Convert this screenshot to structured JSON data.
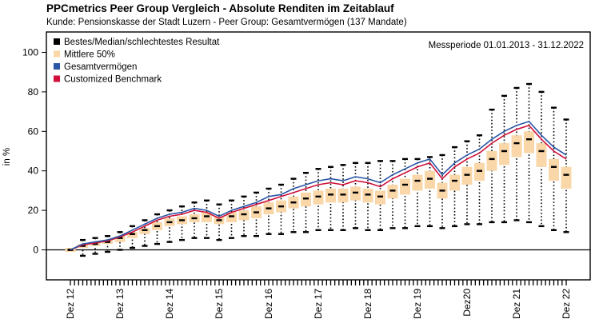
{
  "title": "PPCmetrics Peer Group Vergleich - Absolute Renditen im Zeitablauf",
  "subtitle": "Kunde: Pensionskasse der Stadt Luzern - Peer Group: Gesamtvermögen (137 Mandate)",
  "period_label": "Messperiode 01.01.2013 - 31.12.2022",
  "chart_data": {
    "type": "line",
    "ylabel": "in %",
    "xlabel": "",
    "ylim": [
      -15,
      102
    ],
    "yticks": [
      0,
      20,
      40,
      60,
      80,
      100
    ],
    "xticks": [
      "Dez 12",
      "Dez 13",
      "Dez 14",
      "Dez 15",
      "Dez 16",
      "Dez 17",
      "Dez 18",
      "Dez 19",
      "Dez20",
      "Dez 21",
      "Dez 22"
    ],
    "legend": {
      "position": "top-left",
      "entries": [
        {
          "name": "Bestes/Median/schlechtestes Resultat",
          "color": "#000000"
        },
        {
          "name": "Mittlere 50%",
          "color": "#f9d7a8"
        },
        {
          "name": "Gesamtvermögen",
          "color": "#2a56a6"
        },
        {
          "name": "Customized Benchmark",
          "color": "#d0103a"
        }
      ]
    },
    "x_quarters": [
      0,
      1,
      2,
      3,
      4,
      5,
      6,
      7,
      8,
      9,
      10,
      11,
      12,
      13,
      14,
      15,
      16,
      17,
      18,
      19,
      20,
      21,
      22,
      23,
      24,
      25,
      26,
      27,
      28,
      29,
      30,
      31,
      32,
      33,
      34,
      35,
      36,
      37,
      38,
      39,
      40
    ],
    "series": [
      {
        "name": "Bestes/Median/schlechtestes Resultat",
        "role": "best",
        "values": [
          0,
          5,
          6,
          7,
          9,
          12,
          15,
          18,
          20,
          22,
          24,
          25,
          23,
          25,
          27,
          29,
          31,
          33,
          36,
          39,
          41,
          42,
          43,
          44,
          44,
          45,
          45,
          46,
          46,
          47,
          48,
          52,
          55,
          58,
          71,
          78,
          82,
          84,
          80,
          72,
          66
        ]
      },
      {
        "name": "Bestes/Median/schlechtestes Resultat",
        "role": "median",
        "values": [
          0,
          2,
          3,
          4,
          6,
          8,
          10,
          12,
          14,
          15,
          16,
          17,
          15,
          17,
          18,
          19,
          21,
          22,
          24,
          26,
          27,
          28,
          28,
          29,
          28,
          27,
          30,
          33,
          35,
          36,
          30,
          35,
          38,
          40,
          46,
          50,
          54,
          56,
          50,
          42,
          38
        ]
      },
      {
        "name": "Bestes/Median/schlechtestes Resultat",
        "role": "worst",
        "values": [
          0,
          -3,
          -2,
          -1,
          0,
          1,
          2,
          3,
          4,
          5,
          6,
          6,
          5,
          6,
          7,
          7,
          8,
          8,
          9,
          9,
          10,
          10,
          10,
          11,
          10,
          10,
          11,
          11,
          12,
          12,
          11,
          12,
          13,
          13,
          14,
          14,
          15,
          14,
          12,
          10,
          9
        ]
      },
      {
        "name": "Mittlere 50%",
        "role": "q75",
        "values": [
          1,
          3,
          4,
          5,
          7,
          9,
          11,
          14,
          16,
          17,
          18,
          19,
          17,
          19,
          20,
          22,
          24,
          25,
          27,
          29,
          30,
          31,
          31,
          32,
          31,
          30,
          33,
          36,
          38,
          40,
          34,
          38,
          42,
          44,
          50,
          54,
          58,
          60,
          54,
          46,
          42
        ]
      },
      {
        "name": "Mittlere 50%",
        "role": "q25",
        "values": [
          -1,
          1,
          2,
          3,
          4,
          6,
          8,
          10,
          12,
          13,
          14,
          14,
          13,
          14,
          15,
          16,
          18,
          19,
          21,
          22,
          23,
          24,
          24,
          25,
          24,
          23,
          26,
          28,
          30,
          31,
          26,
          30,
          33,
          35,
          40,
          43,
          47,
          49,
          42,
          35,
          31
        ]
      },
      {
        "name": "Gesamtvermögen",
        "values": [
          0,
          3,
          4,
          5,
          7,
          10,
          13,
          16,
          18,
          19,
          21,
          20,
          17,
          20,
          22,
          24,
          27,
          28,
          31,
          33,
          35,
          36,
          35,
          37,
          36,
          34,
          38,
          41,
          44,
          46,
          38,
          44,
          48,
          51,
          56,
          60,
          63,
          65,
          58,
          52,
          48
        ]
      },
      {
        "name": "Customized Benchmark",
        "values": [
          0,
          2.5,
          3.5,
          4.5,
          6.5,
          9,
          12,
          15,
          17,
          18,
          20,
          19,
          16,
          19,
          21,
          23,
          25,
          27,
          29,
          31,
          33,
          34,
          33,
          35,
          34,
          32,
          36,
          39,
          42,
          44,
          36,
          42,
          46,
          49,
          54,
          58,
          61,
          63,
          56,
          50,
          46
        ]
      }
    ]
  }
}
